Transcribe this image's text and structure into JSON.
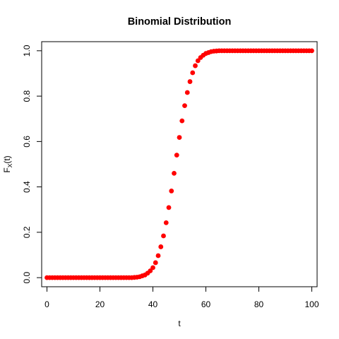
{
  "chart_data": {
    "type": "scatter",
    "title": "Binomial Distribution",
    "xlabel": "t",
    "ylabel": {
      "main": "F",
      "sub": "X",
      "arg": "(t)"
    },
    "xlim": [
      -2,
      102
    ],
    "ylim": [
      -0.04,
      1.04
    ],
    "xticks": [
      0,
      20,
      40,
      60,
      80,
      100
    ],
    "yticks": [
      0.0,
      0.2,
      0.4,
      0.6,
      0.8,
      1.0
    ],
    "ytick_labels": [
      "0.0",
      "0.2",
      "0.4",
      "0.6",
      "0.8",
      "1.0"
    ],
    "marker_color": "#ff0000",
    "series": [
      {
        "x": [
          0,
          1,
          2,
          3,
          4,
          5,
          6,
          7,
          8,
          9,
          10,
          11,
          12,
          13,
          14,
          15,
          16,
          17,
          18,
          19,
          20,
          21,
          22,
          23,
          24,
          25,
          26,
          27,
          28,
          29,
          30,
          31,
          32,
          33,
          34,
          35,
          36,
          37,
          38,
          39,
          40,
          41,
          42,
          43,
          44,
          45,
          46,
          47,
          48,
          49,
          50,
          51,
          52,
          53,
          54,
          55,
          56,
          57,
          58,
          59,
          60,
          61,
          62,
          63,
          64,
          65,
          66,
          67,
          68,
          69,
          70,
          71,
          72,
          73,
          74,
          75,
          76,
          77,
          78,
          79,
          80,
          81,
          82,
          83,
          84,
          85,
          86,
          87,
          88,
          89,
          90,
          91,
          92,
          93,
          94,
          95,
          96,
          97,
          98,
          99,
          100
        ],
        "y": [
          0,
          0,
          0,
          0,
          0,
          0,
          0,
          0,
          0,
          0,
          0,
          0,
          0,
          0,
          0,
          0,
          0,
          0,
          0,
          0,
          0,
          0,
          0,
          0,
          0,
          0,
          0,
          0,
          0,
          0,
          0,
          0,
          0,
          0.001,
          0.002,
          0.004,
          0.008,
          0.012,
          0.02,
          0.03,
          0.044,
          0.066,
          0.097,
          0.136,
          0.184,
          0.242,
          0.309,
          0.382,
          0.46,
          0.54,
          0.618,
          0.691,
          0.758,
          0.816,
          0.864,
          0.903,
          0.934,
          0.956,
          0.97,
          0.98,
          0.988,
          0.992,
          0.996,
          0.998,
          0.999,
          1,
          1,
          1,
          1,
          1,
          1,
          1,
          1,
          1,
          1,
          1,
          1,
          1,
          1,
          1,
          1,
          1,
          1,
          1,
          1,
          1,
          1,
          1,
          1,
          1,
          1,
          1,
          1,
          1,
          1,
          1,
          1,
          1,
          1,
          1,
          1
        ]
      }
    ]
  }
}
